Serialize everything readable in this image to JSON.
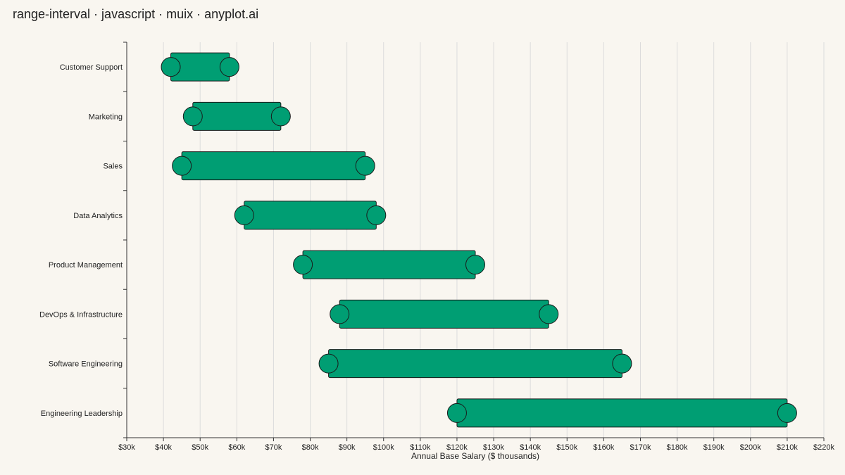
{
  "page": {
    "title": "range-interval · javascript · muix · anyplot.ai"
  },
  "chart_data": {
    "type": "range-interval",
    "title": "range-interval · javascript · muix · anyplot.ai",
    "xlabel": "Annual Base Salary ($ thousands)",
    "ylabel": "",
    "xlim": [
      30,
      220
    ],
    "x_ticks": [
      30,
      40,
      50,
      60,
      70,
      80,
      90,
      100,
      110,
      120,
      130,
      140,
      150,
      160,
      170,
      180,
      190,
      200,
      210,
      220
    ],
    "x_tick_labels": [
      "$30k",
      "$40k",
      "$50k",
      "$60k",
      "$70k",
      "$80k",
      "$90k",
      "$100k",
      "$110k",
      "$120k",
      "$130k",
      "$140k",
      "$150k",
      "$160k",
      "$170k",
      "$180k",
      "$190k",
      "$200k",
      "$210k",
      "$220k"
    ],
    "grid": "vertical",
    "categories": [
      "Customer Support",
      "Marketing",
      "Sales",
      "Data Analytics",
      "Product Management",
      "DevOps & Infrastructure",
      "Software Engineering",
      "Engineering Leadership"
    ],
    "series": [
      {
        "low": [
          42,
          48,
          45,
          62,
          78,
          88,
          85,
          120
        ],
        "high": [
          58,
          72,
          95,
          98,
          125,
          145,
          165,
          210
        ]
      }
    ],
    "colors": {
      "bar": "#009e73",
      "outline": "#1a1a1a",
      "grid": "#dcdcdc",
      "axis": "#333333",
      "background": "#f9f6f0"
    }
  }
}
